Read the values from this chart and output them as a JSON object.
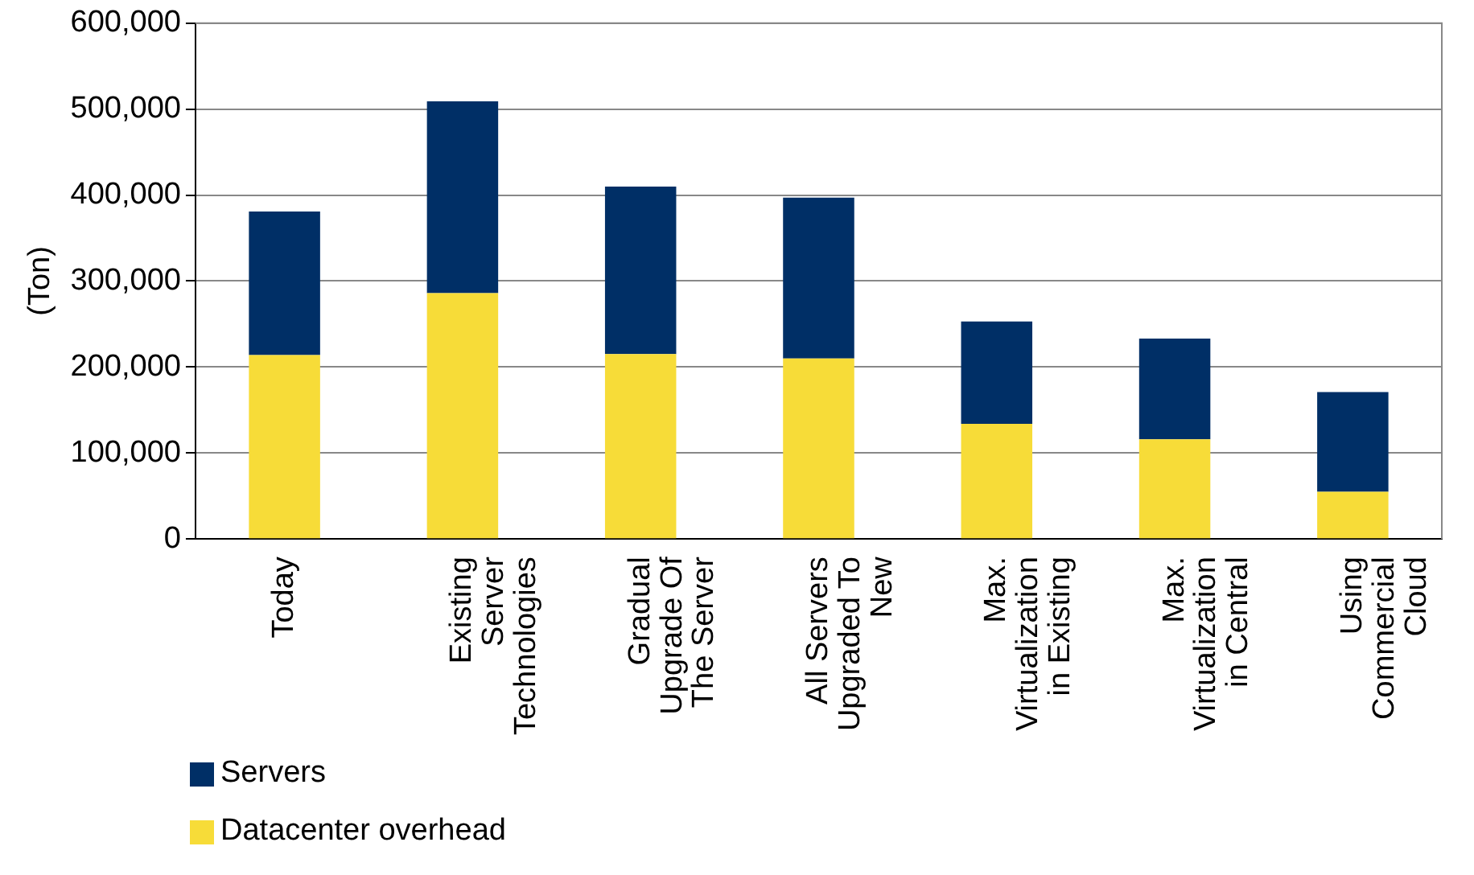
{
  "chart_data": {
    "type": "bar",
    "stacked": true,
    "ylabel": "(Ton)",
    "categories": [
      "Today",
      "Existing Server Technologies",
      "Gradual Upgrade Of The Server",
      "All Servers Upgraded To New",
      "Max. Virtualization in Existing",
      "Max. Virtualization in Central",
      "Using Commercial Cloud"
    ],
    "series": [
      {
        "name": "Datacenter overhead",
        "color": "#f7dc38",
        "values": [
          214000,
          286000,
          215000,
          210000,
          134000,
          116000,
          55000
        ]
      },
      {
        "name": "Servers",
        "color": "#002f66",
        "values": [
          167000,
          223000,
          195000,
          187000,
          119000,
          117000,
          116000
        ]
      }
    ],
    "ylim": [
      0,
      600000
    ],
    "yticks": [
      {
        "value": 0,
        "label": "0"
      },
      {
        "value": 100000,
        "label": "100,000"
      },
      {
        "value": 200000,
        "label": "200,000"
      },
      {
        "value": 300000,
        "label": "300,000"
      },
      {
        "value": 400000,
        "label": "400,000"
      },
      {
        "value": 500000,
        "label": "500,000"
      },
      {
        "value": 600000,
        "label": "600,000"
      }
    ],
    "grid": "y",
    "legend": "bottom left"
  }
}
